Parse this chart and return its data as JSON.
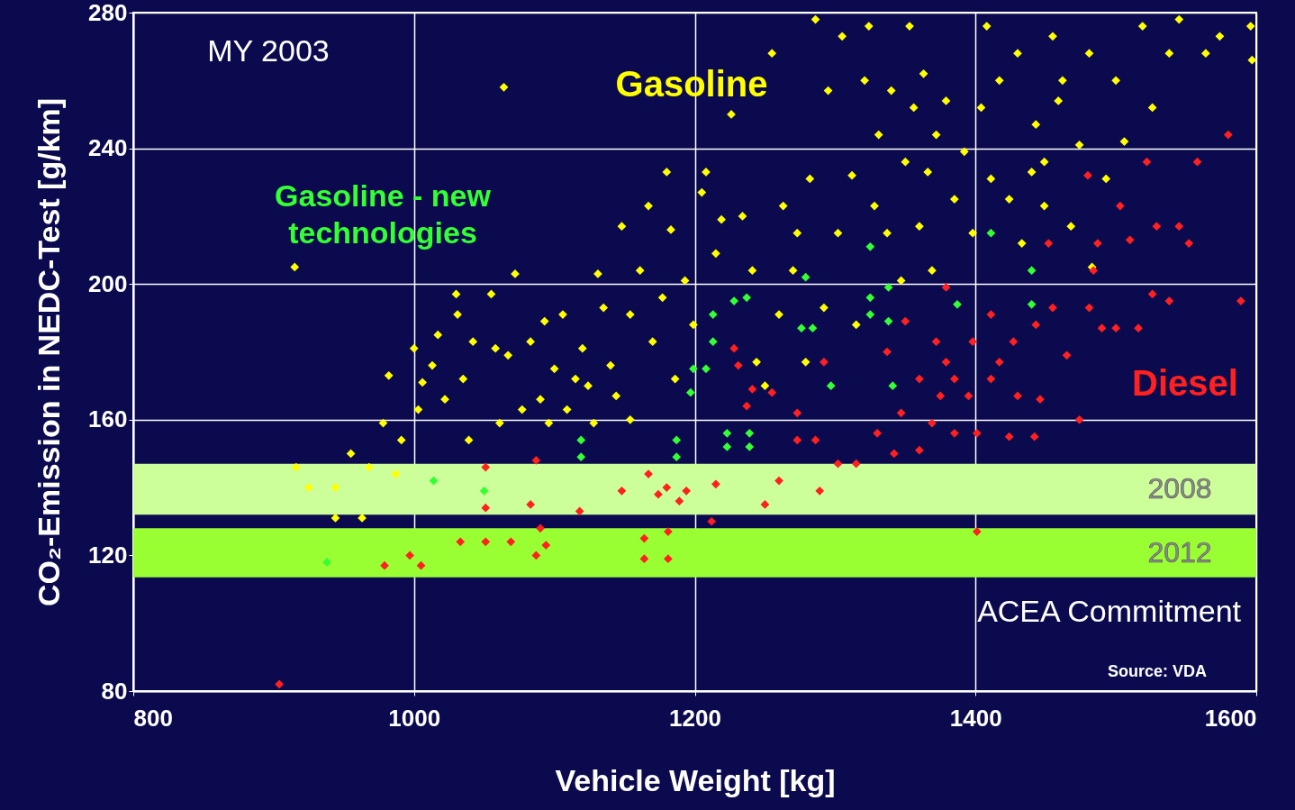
{
  "chart_data": {
    "type": "scatter",
    "xlabel": "Vehicle Weight [kg]",
    "ylabel": "CO₂-Emission in NEDC-Test  [g/km]",
    "xlim": [
      800,
      1600
    ],
    "xticks": [
      800,
      1000,
      1200,
      1400,
      1600
    ],
    "ylim": [
      80,
      280
    ],
    "yticks": [
      80,
      120,
      160,
      200,
      240,
      280
    ],
    "grid": true,
    "marker": "diamond",
    "annotations": [
      "MY 2003",
      "ACEA Commitment",
      "Source: VDA"
    ],
    "bands": [
      {
        "axis": "y",
        "from": 132,
        "to": 147,
        "label": "2008",
        "color": "#ccff99"
      },
      {
        "axis": "y",
        "from": 113.5,
        "to": 128,
        "label": "2012",
        "color": "#99ff33"
      }
    ],
    "series": [
      {
        "name": "Gasoline",
        "color": "#ffff00",
        "x": [
          915,
          1064,
          916,
          925,
          944,
          944,
          963,
          955,
          968,
          978,
          982,
          987,
          991,
          1000,
          1003,
          1006,
          1013,
          1017,
          1022,
          1030,
          1031,
          1035,
          1039,
          1042,
          1055,
          1058,
          1061,
          1067,
          1072,
          1077,
          1083,
          1090,
          1093,
          1096,
          1100,
          1106,
          1109,
          1115,
          1120,
          1124,
          1128,
          1131,
          1135,
          1140,
          1144,
          1148,
          1154,
          1154,
          1161,
          1167,
          1170,
          1177,
          1180,
          1183,
          1186,
          1193,
          1199,
          1205,
          1208,
          1215,
          1219,
          1226,
          1234,
          1241,
          1244,
          1250,
          1255,
          1260,
          1263,
          1270,
          1273,
          1279,
          1282,
          1286,
          1292,
          1295,
          1302,
          1305,
          1312,
          1315,
          1321,
          1324,
          1328,
          1331,
          1337,
          1340,
          1347,
          1350,
          1353,
          1356,
          1360,
          1363,
          1366,
          1369,
          1372,
          1379,
          1385,
          1392,
          1398,
          1404,
          1408,
          1411,
          1417,
          1424,
          1430,
          1433,
          1440,
          1443,
          1449,
          1455,
          1459,
          1468,
          1474,
          1481,
          1483,
          1493,
          1500,
          1506,
          1519,
          1526,
          1538,
          1545,
          1564,
          1574,
          1596,
          1597,
          1462,
          1449
        ],
        "values": [
          205,
          258,
          146,
          140,
          140,
          131,
          131,
          150,
          146,
          159,
          173,
          144,
          154,
          181,
          163,
          171,
          176,
          185,
          166,
          197,
          191,
          172,
          154,
          183,
          197,
          181,
          159,
          179,
          203,
          163,
          183,
          166,
          189,
          159,
          175,
          191,
          163,
          172,
          181,
          170,
          159,
          203,
          193,
          176,
          167,
          217,
          191,
          160,
          204,
          223,
          183,
          196,
          233,
          216,
          172,
          201,
          188,
          227,
          233,
          209,
          219,
          250,
          220,
          204,
          177,
          170,
          268,
          191,
          223,
          204,
          215,
          177,
          231,
          278,
          193,
          257,
          215,
          273,
          232,
          188,
          260,
          276,
          223,
          244,
          215,
          257,
          201,
          236,
          276,
          252,
          217,
          262,
          233,
          204,
          244,
          254,
          225,
          239,
          215,
          252,
          276,
          231,
          260,
          225,
          268,
          212,
          233,
          247,
          223,
          273,
          254,
          217,
          241,
          268,
          205,
          231,
          260,
          242,
          276,
          252,
          268,
          278,
          268,
          273,
          276,
          266,
          260,
          236
        ]
      },
      {
        "name": "Diesel",
        "color": "#ff2020",
        "x": [
          904,
          979,
          997,
          1005,
          1033,
          1051,
          1051,
          1051,
          1069,
          1083,
          1087,
          1090,
          1094,
          1087,
          1118,
          1148,
          1164,
          1164,
          1167,
          1174,
          1180,
          1181,
          1181,
          1189,
          1194,
          1212,
          1215,
          1228,
          1231,
          1237,
          1241,
          1250,
          1255,
          1260,
          1273,
          1273,
          1286,
          1289,
          1292,
          1302,
          1315,
          1330,
          1337,
          1342,
          1347,
          1350,
          1360,
          1360,
          1369,
          1372,
          1375,
          1379,
          1379,
          1385,
          1385,
          1395,
          1398,
          1401,
          1401,
          1411,
          1411,
          1417,
          1424,
          1427,
          1430,
          1442,
          1443,
          1446,
          1452,
          1455,
          1465,
          1474,
          1481,
          1484,
          1487,
          1490,
          1500,
          1503,
          1510,
          1516,
          1522,
          1529,
          1538,
          1545,
          1552,
          1558,
          1580,
          1589,
          1480,
          1526
        ],
        "values": [
          82,
          117,
          120,
          117,
          124,
          124,
          134,
          146,
          124,
          135,
          148,
          128,
          123,
          120,
          133,
          139,
          119,
          125,
          144,
          138,
          140,
          127,
          119,
          136,
          139,
          130,
          141,
          181,
          176,
          164,
          169,
          135,
          168,
          142,
          154,
          162,
          154,
          139,
          177,
          147,
          147,
          156,
          180,
          150,
          162,
          189,
          172,
          151,
          159,
          183,
          167,
          199,
          177,
          172,
          156,
          167,
          183,
          127,
          156,
          191,
          172,
          177,
          155,
          183,
          167,
          155,
          188,
          166,
          212,
          193,
          179,
          160,
          193,
          204,
          212,
          187,
          187,
          223,
          213,
          187,
          236,
          217,
          195,
          217,
          212,
          236,
          244,
          195,
          232,
          197
        ]
      },
      {
        "name": "Gasoline - new technologies",
        "color": "#33ff33",
        "x": [
          938,
          1014,
          1050,
          1119,
          1119,
          1187,
          1187,
          1197,
          1199,
          1208,
          1213,
          1213,
          1223,
          1223,
          1239,
          1239,
          1228,
          1237,
          1279,
          1284,
          1276,
          1297,
          1325,
          1325,
          1325,
          1338,
          1338,
          1341,
          1387,
          1411,
          1440,
          1440
        ],
        "values": [
          118,
          142,
          139,
          154,
          149,
          154,
          149,
          168,
          175,
          175,
          183,
          191,
          156,
          152,
          156,
          152,
          195,
          196,
          202,
          187,
          187,
          170,
          211,
          196,
          191,
          199,
          189,
          170,
          194,
          215,
          204,
          194
        ]
      }
    ]
  }
}
